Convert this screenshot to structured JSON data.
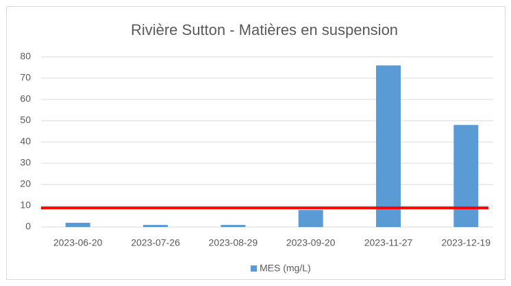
{
  "chart_data": {
    "type": "bar",
    "title": "Rivière Sutton - Matières en suspension",
    "categories": [
      "2023-06-20",
      "2023-07-26",
      "2023-08-29",
      "2023-09-20",
      "2023-11-27",
      "2023-12-19"
    ],
    "series": [
      {
        "name": "MES (mg/L)",
        "color": "#5b9bd5",
        "values": [
          2,
          1,
          1,
          8,
          76,
          48
        ]
      }
    ],
    "threshold": 9,
    "threshold_color": "#ff0000",
    "ylim": [
      0,
      80
    ],
    "yticks": [
      0,
      10,
      20,
      30,
      40,
      50,
      60,
      70,
      80
    ],
    "grid": true,
    "legend": "bottom"
  }
}
